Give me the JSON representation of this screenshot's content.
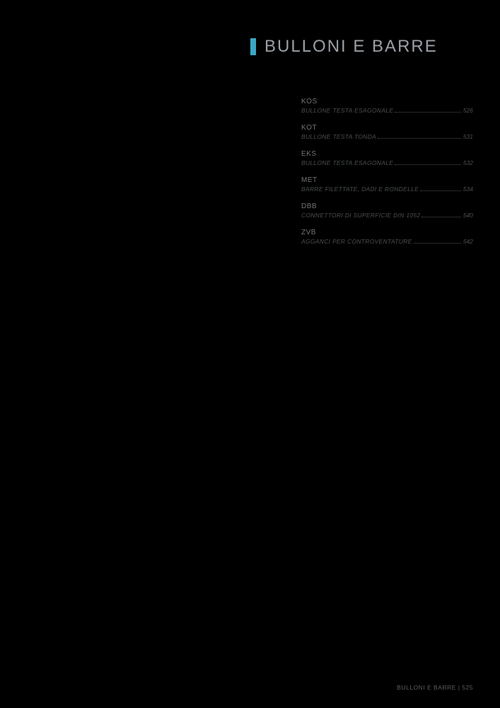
{
  "colors": {
    "background": "#000000",
    "accent": "#3ba7c4",
    "title": "#9aa0a6",
    "toc_code": "#707478",
    "toc_text": "#4a4e52",
    "footer": "#5a5e62"
  },
  "header": {
    "title": "BULLONI E BARRE"
  },
  "toc": {
    "items": [
      {
        "code": "KOS",
        "desc": "BULLONE TESTA ESAGONALE",
        "page": "526"
      },
      {
        "code": "KOT",
        "desc": "BULLONE TESTA TONDA",
        "page": "531"
      },
      {
        "code": "EKS",
        "desc": "BULLONE TESTA ESAGONALE",
        "page": "532"
      },
      {
        "code": "MET",
        "desc": "BARRE FILETTATE, DADI E RONDELLE",
        "page": "534"
      },
      {
        "code": "DBB",
        "desc": "CONNETTORI DI SUPERFICIE DIN 1052",
        "page": "540"
      },
      {
        "code": "ZVB",
        "desc": "AGGANCI PER CONTROVENTATURE",
        "page": "542"
      }
    ]
  },
  "footer": {
    "section": "BULLONI E BARRE",
    "separator": "|",
    "page": "525"
  }
}
